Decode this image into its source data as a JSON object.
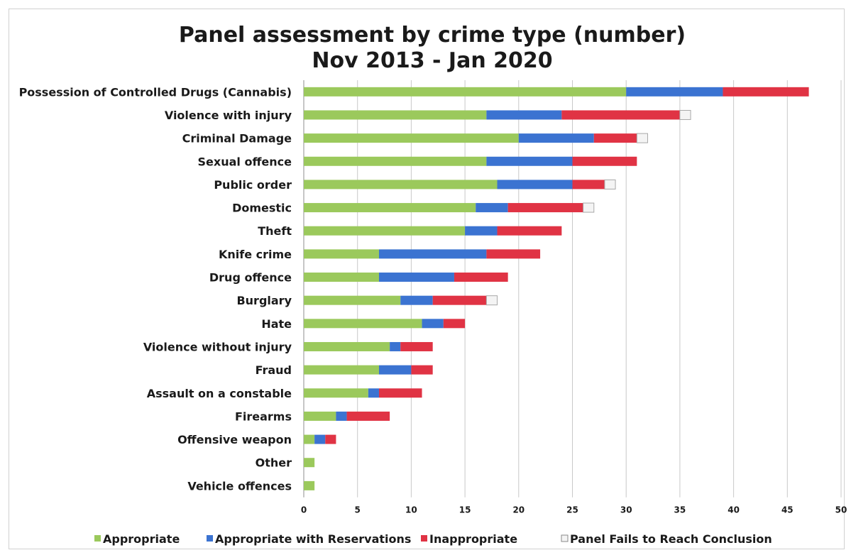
{
  "chart_data": {
    "type": "bar",
    "orientation": "horizontal",
    "stacked": true,
    "title": "Panel assessment by crime type (number)",
    "subtitle": "Nov 2013 - Jan 2020",
    "categories": [
      "Possession of Controlled Drugs (Cannabis)",
      "Violence with injury",
      "Criminal Damage",
      "Sexual offence",
      "Public order",
      "Domestic",
      "Theft",
      "Knife crime",
      "Drug offence",
      "Burglary",
      "Hate",
      "Violence without injury",
      "Fraud",
      "Assault on a constable",
      "Firearms",
      "Offensive weapon",
      "Other",
      "Vehicle offences"
    ],
    "series": [
      {
        "name": "Appropriate",
        "color": "#9bc95c",
        "values": [
          30,
          17,
          20,
          17,
          18,
          16,
          15,
          7,
          7,
          9,
          11,
          8,
          7,
          6,
          3,
          1,
          1,
          1
        ]
      },
      {
        "name": "Appropriate with Reservations",
        "color": "#3b73d1",
        "values": [
          9,
          7,
          7,
          8,
          7,
          3,
          3,
          10,
          7,
          3,
          2,
          1,
          3,
          1,
          1,
          1,
          0,
          0
        ]
      },
      {
        "name": "Inappropriate",
        "color": "#e03344",
        "values": [
          8,
          11,
          4,
          6,
          3,
          7,
          6,
          5,
          5,
          5,
          2,
          3,
          2,
          4,
          4,
          1,
          0,
          0
        ]
      },
      {
        "name": "Panel Fails to Reach Conclusion",
        "color": "#f4f4f4",
        "values": [
          0,
          1,
          1,
          0,
          1,
          1,
          0,
          0,
          0,
          1,
          0,
          0,
          0,
          0,
          0,
          0,
          0,
          0
        ]
      }
    ],
    "xlim": [
      0,
      50
    ],
    "xticks": [
      0,
      5,
      10,
      15,
      20,
      25,
      30,
      35,
      40,
      45,
      50
    ],
    "grid": true,
    "legend_position": "bottom"
  }
}
